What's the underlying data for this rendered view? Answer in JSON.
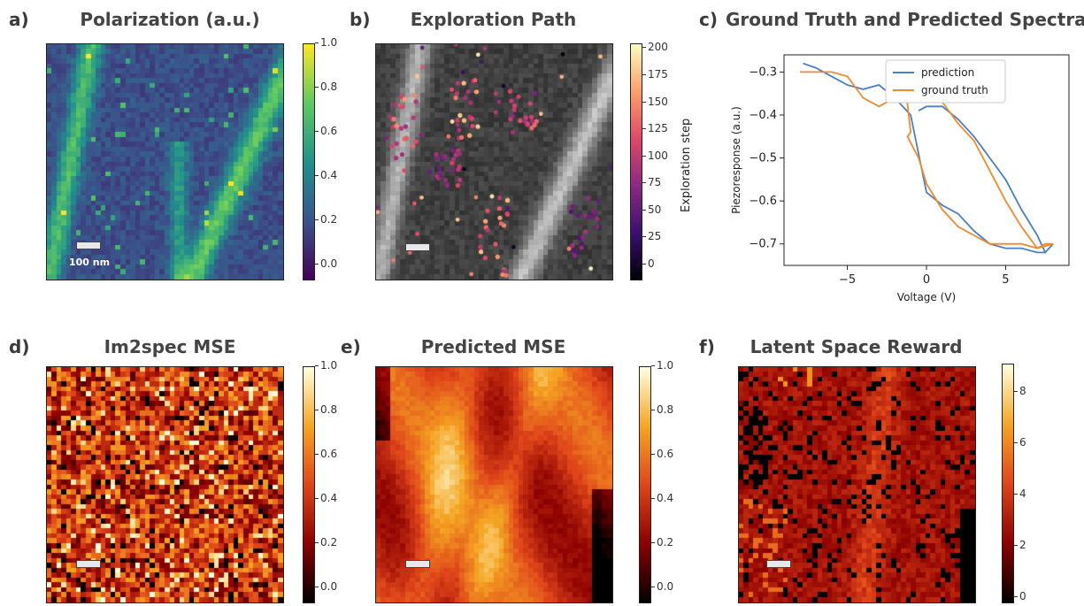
{
  "panels": {
    "a": {
      "label": "a)",
      "title": "Polarization  (a.u.)",
      "scalebar_label": "100 nm",
      "colorbar_ticks": [
        "1.0",
        "0.8",
        "0.6",
        "0.4",
        "0.2",
        "0.0"
      ]
    },
    "b": {
      "label": "b)",
      "title": "Exploration Path",
      "colorbar_ticks": [
        "200",
        "175",
        "150",
        "125",
        "100",
        "75",
        "50",
        "25",
        "0"
      ],
      "colorbar_label": "Exploration step"
    },
    "c": {
      "label": "c)",
      "title": "Ground Truth and Predicted Spectra"
    },
    "d": {
      "label": "d)",
      "title": "Im2spec MSE",
      "colorbar_ticks": [
        "1.0",
        "0.8",
        "0.6",
        "0.4",
        "0.2",
        "0.0"
      ]
    },
    "e": {
      "label": "e)",
      "title": "Predicted MSE",
      "colorbar_ticks": [
        "1.0",
        "0.8",
        "0.6",
        "0.4",
        "0.2",
        "0.0"
      ]
    },
    "f": {
      "label": "f)",
      "title": "Latent Space Reward",
      "colorbar_ticks": [
        "8",
        "6",
        "4",
        "2",
        "0"
      ]
    }
  },
  "colors": {
    "prediction": "#4a7fc1",
    "ground_truth": "#f08a2c",
    "viridis": [
      "#440154",
      "#3b528b",
      "#21918c",
      "#5ec962",
      "#fde725"
    ],
    "hot": [
      "#000000",
      "#8b0000",
      "#e0451a",
      "#f5a623",
      "#ffffe0"
    ]
  },
  "chart_data": [
    {
      "type": "heatmap",
      "panel": "a",
      "title": "Polarization  (a.u.)",
      "colormap": "viridis",
      "vmin": 0.0,
      "vmax": 1.0,
      "description_values": "mostly ~0.25 blue background with diagonal greenish ferroelectric domain walls",
      "grid": [
        48,
        48
      ]
    },
    {
      "type": "scatter",
      "panel": "b",
      "title": "Exploration Path",
      "colormap": "inferno",
      "colorbar_label": "Exploration step",
      "crange": [
        0,
        200
      ],
      "grid": [
        48,
        48
      ]
    },
    {
      "type": "line",
      "panel": "c",
      "title": "Ground Truth and Predicted Spectra",
      "xlabel": "Voltage (V)",
      "ylabel": "Piezoresponse (a.u.)",
      "xlim": [
        -9,
        9
      ],
      "ylim": [
        -0.75,
        -0.26
      ],
      "xticks": [
        -5,
        0,
        5
      ],
      "yticks": [
        -0.3,
        -0.4,
        -0.5,
        -0.6,
        -0.7
      ],
      "legend": "top-right",
      "series": [
        {
          "name": "prediction",
          "x": [
            -7.8,
            -7.0,
            -6.0,
            -5.0,
            -4.0,
            -3.0,
            -2.0,
            -1.0,
            0.0,
            1.0,
            2.0,
            3.0,
            4.0,
            5.0,
            6.0,
            7.0,
            7.5,
            8.0,
            7.5,
            7.0,
            6.0,
            5.0,
            4.0,
            3.0,
            2.0,
            1.0,
            0.0,
            -0.5
          ],
          "y": [
            -0.28,
            -0.29,
            -0.31,
            -0.33,
            -0.34,
            -0.33,
            -0.36,
            -0.4,
            -0.58,
            -0.61,
            -0.63,
            -0.67,
            -0.7,
            -0.71,
            -0.71,
            -0.72,
            -0.72,
            -0.7,
            -0.72,
            -0.68,
            -0.62,
            -0.55,
            -0.5,
            -0.45,
            -0.41,
            -0.38,
            -0.38,
            -0.39
          ]
        },
        {
          "name": "ground truth",
          "x": [
            -8.0,
            -7.0,
            -6.0,
            -5.0,
            -4.0,
            -3.0,
            -2.0,
            -1.5,
            -1.0,
            -1.2,
            -0.5,
            0.0,
            1.0,
            2.0,
            3.0,
            4.0,
            5.0,
            6.0,
            7.0,
            8.0,
            7.5,
            7.0,
            6.0,
            5.0,
            4.0,
            3.0,
            2.0,
            1.0,
            0.0,
            -0.5
          ],
          "y": [
            -0.3,
            -0.3,
            -0.3,
            -0.31,
            -0.36,
            -0.38,
            -0.36,
            -0.28,
            -0.44,
            -0.45,
            -0.5,
            -0.56,
            -0.62,
            -0.66,
            -0.68,
            -0.7,
            -0.7,
            -0.7,
            -0.71,
            -0.7,
            -0.7,
            -0.71,
            -0.66,
            -0.6,
            -0.53,
            -0.46,
            -0.42,
            -0.37,
            -0.35,
            -0.35
          ]
        }
      ]
    },
    {
      "type": "heatmap",
      "panel": "d",
      "title": "Im2spec MSE",
      "colormap": "hot",
      "vmin": 0.0,
      "vmax": 1.0,
      "grid": [
        48,
        48
      ]
    },
    {
      "type": "heatmap",
      "panel": "e",
      "title": "Predicted MSE",
      "colormap": "hot",
      "vmin": 0.0,
      "vmax": 1.0,
      "grid": [
        48,
        48
      ]
    },
    {
      "type": "heatmap",
      "panel": "f",
      "title": "Latent Space Reward",
      "colormap": "hot",
      "vmin": 0,
      "vmax": 10,
      "grid": [
        48,
        48
      ]
    }
  ]
}
